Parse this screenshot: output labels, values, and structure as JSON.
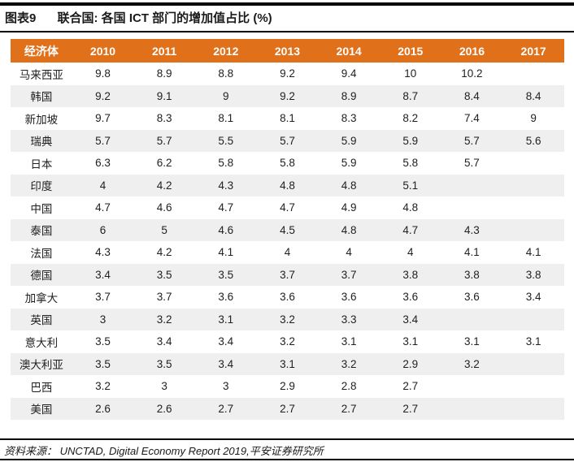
{
  "header": {
    "figure_label": "图表9",
    "title": "联合国: 各国 ICT 部门的增加值占比 (%)"
  },
  "table": {
    "columns": [
      "经济体",
      "2010",
      "2011",
      "2012",
      "2013",
      "2014",
      "2015",
      "2016",
      "2017"
    ],
    "rows": [
      {
        "name": "马来西亚",
        "values": [
          "9.8",
          "8.9",
          "8.8",
          "9.2",
          "9.4",
          "10",
          "10.2",
          ""
        ]
      },
      {
        "name": "韩国",
        "values": [
          "9.2",
          "9.1",
          "9",
          "9.2",
          "8.9",
          "8.7",
          "8.4",
          "8.4"
        ]
      },
      {
        "name": "新加坡",
        "values": [
          "9.7",
          "8.3",
          "8.1",
          "8.1",
          "8.3",
          "8.2",
          "7.4",
          "9"
        ]
      },
      {
        "name": "瑞典",
        "values": [
          "5.7",
          "5.7",
          "5.5",
          "5.7",
          "5.9",
          "5.9",
          "5.7",
          "5.6"
        ]
      },
      {
        "name": "日本",
        "values": [
          "6.3",
          "6.2",
          "5.8",
          "5.8",
          "5.9",
          "5.8",
          "5.7",
          ""
        ]
      },
      {
        "name": "印度",
        "values": [
          "4",
          "4.2",
          "4.3",
          "4.8",
          "4.8",
          "5.1",
          "",
          ""
        ]
      },
      {
        "name": "中国",
        "values": [
          "4.7",
          "4.6",
          "4.7",
          "4.7",
          "4.9",
          "4.8",
          "",
          ""
        ]
      },
      {
        "name": "泰国",
        "values": [
          "6",
          "5",
          "4.6",
          "4.5",
          "4.8",
          "4.7",
          "4.3",
          ""
        ]
      },
      {
        "name": "法国",
        "values": [
          "4.3",
          "4.2",
          "4.1",
          "4",
          "4",
          "4",
          "4.1",
          "4.1"
        ]
      },
      {
        "name": "德国",
        "values": [
          "3.4",
          "3.5",
          "3.5",
          "3.7",
          "3.7",
          "3.8",
          "3.8",
          "3.8"
        ]
      },
      {
        "name": "加拿大",
        "values": [
          "3.7",
          "3.7",
          "3.6",
          "3.6",
          "3.6",
          "3.6",
          "3.6",
          "3.4"
        ]
      },
      {
        "name": "英国",
        "values": [
          "3",
          "3.2",
          "3.1",
          "3.2",
          "3.3",
          "3.4",
          "",
          ""
        ]
      },
      {
        "name": "意大利",
        "values": [
          "3.5",
          "3.4",
          "3.4",
          "3.2",
          "3.1",
          "3.1",
          "3.1",
          "3.1"
        ]
      },
      {
        "name": "澳大利亚",
        "values": [
          "3.5",
          "3.5",
          "3.4",
          "3.1",
          "3.2",
          "2.9",
          "3.2",
          ""
        ]
      },
      {
        "name": "巴西",
        "values": [
          "3.2",
          "3",
          "3",
          "2.9",
          "2.8",
          "2.7",
          "",
          ""
        ]
      },
      {
        "name": "美国",
        "values": [
          "2.6",
          "2.6",
          "2.7",
          "2.7",
          "2.7",
          "2.7",
          "",
          ""
        ]
      }
    ]
  },
  "footer": {
    "source": "资料来源： UNCTAD, Digital Economy Report 2019,平安证券研究所"
  },
  "colors": {
    "header_accent": "#E1701A",
    "row_alt": "#EFEFEF",
    "rule": "#000000"
  }
}
